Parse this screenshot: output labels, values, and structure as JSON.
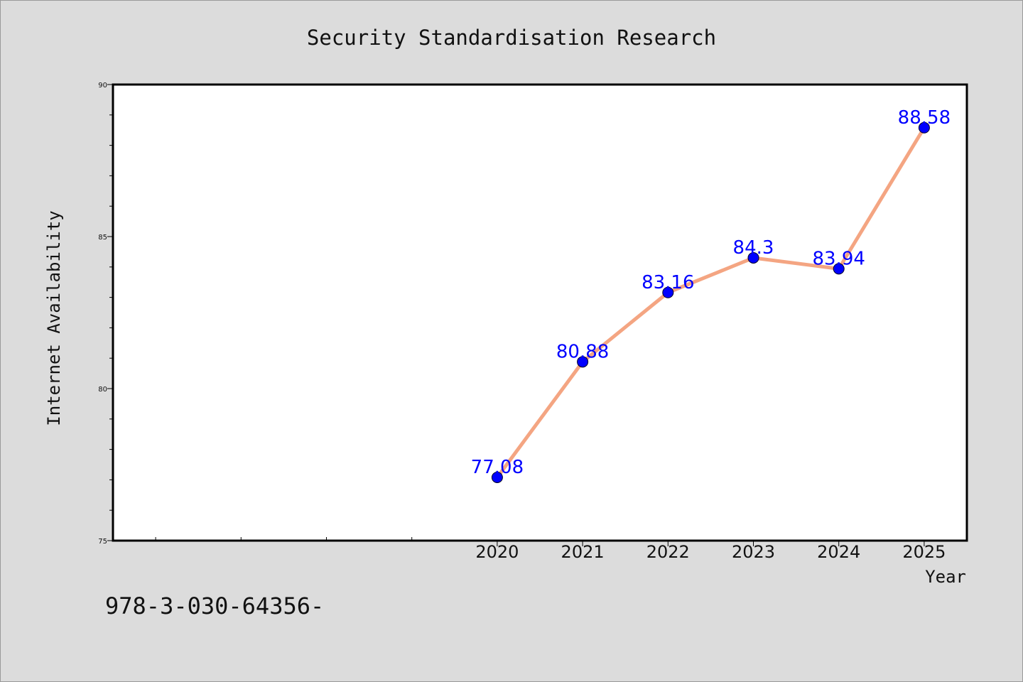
{
  "chart_data": {
    "type": "line",
    "title": "Security Standardisation Research",
    "xlabel": "Year",
    "ylabel": "Internet Availability",
    "x": [
      2020,
      2021,
      2022,
      2023,
      2024,
      2025
    ],
    "series": [
      {
        "values": [
          77.08,
          80.88,
          83.16,
          84.3,
          83.94,
          88.58
        ]
      }
    ],
    "data_labels": [
      "77.08",
      "80.88",
      "83.16",
      "84.3",
      "83.94",
      "88.58"
    ],
    "x_tick_labels": [
      "2020",
      "2021",
      "2022",
      "2023",
      "2024",
      "2025"
    ],
    "y_tick_labels": [
      "75",
      "80",
      "85",
      "90"
    ],
    "y_ticks": [
      75,
      80,
      85,
      90
    ],
    "ylim": [
      75,
      90
    ],
    "xlim": [
      2015.5,
      2025.5
    ],
    "grid": false,
    "line_color": "#f4a582",
    "marker_color": "#0000ff",
    "label_color": "#0000ff",
    "plot_background": "#ffffff",
    "figure_background": "#dcdcdc"
  },
  "footer": {
    "text": "978-3-030-64356-"
  }
}
